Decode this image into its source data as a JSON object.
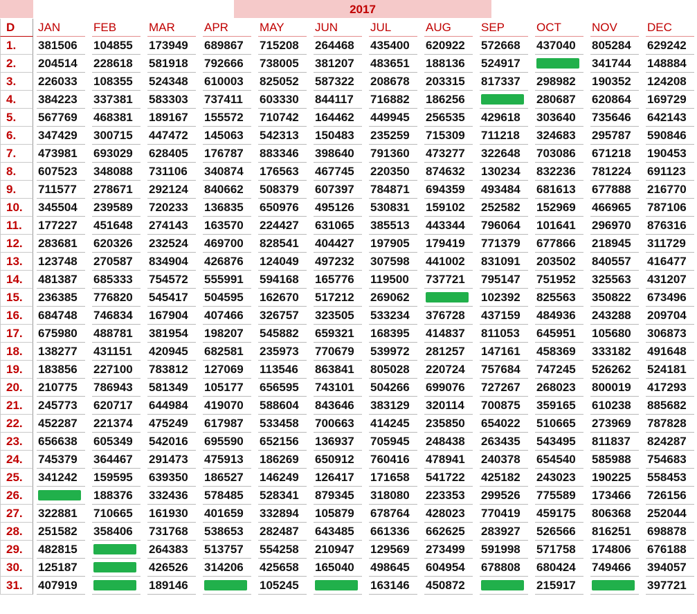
{
  "sheet": {
    "year": "2017",
    "day_header": "D",
    "months": [
      "JAN",
      "FEB",
      "MAR",
      "APR",
      "MAY",
      "JUN",
      "JUL",
      "AUG",
      "SEP",
      "OCT",
      "NOV",
      "DEC"
    ],
    "rows": [
      {
        "day": "1.",
        "values": [
          "381506",
          "104855",
          "173949",
          "689867",
          "715208",
          "264468",
          "435400",
          "620922",
          "572668",
          "437040",
          "805284",
          "629242"
        ]
      },
      {
        "day": "2.",
        "values": [
          "204514",
          "228618",
          "581918",
          "792666",
          "738005",
          "381207",
          "483651",
          "188136",
          "524917",
          "",
          "341744",
          "148884"
        ]
      },
      {
        "day": "3.",
        "values": [
          "226033",
          "108355",
          "524348",
          "610003",
          "825052",
          "587322",
          "208678",
          "203315",
          "817337",
          "298982",
          "190352",
          "124208"
        ]
      },
      {
        "day": "4.",
        "values": [
          "384223",
          "337381",
          "583303",
          "737411",
          "603330",
          "844117",
          "716882",
          "186256",
          "",
          "280687",
          "620864",
          "169729"
        ]
      },
      {
        "day": "5.",
        "values": [
          "567769",
          "468381",
          "189167",
          "155572",
          "710742",
          "164462",
          "449945",
          "256535",
          "429618",
          "303640",
          "735646",
          "642143"
        ]
      },
      {
        "day": "6.",
        "values": [
          "347429",
          "300715",
          "447472",
          "145063",
          "542313",
          "150483",
          "235259",
          "715309",
          "711218",
          "324683",
          "295787",
          "590846"
        ]
      },
      {
        "day": "7.",
        "values": [
          "473981",
          "693029",
          "628405",
          "176787",
          "883346",
          "398640",
          "791360",
          "473277",
          "322648",
          "703086",
          "671218",
          "190453"
        ]
      },
      {
        "day": "8.",
        "values": [
          "607523",
          "348088",
          "731106",
          "340874",
          "176563",
          "467745",
          "220350",
          "874632",
          "130234",
          "832236",
          "781224",
          "691123"
        ]
      },
      {
        "day": "9.",
        "values": [
          "711577",
          "278671",
          "292124",
          "840662",
          "508379",
          "607397",
          "784871",
          "694359",
          "493484",
          "681613",
          "677888",
          "216770"
        ]
      },
      {
        "day": "10.",
        "values": [
          "345504",
          "239589",
          "720233",
          "136835",
          "650976",
          "495126",
          "530831",
          "159102",
          "252582",
          "152969",
          "466965",
          "787106"
        ]
      },
      {
        "day": "11.",
        "values": [
          "177227",
          "451648",
          "274143",
          "163570",
          "224427",
          "631065",
          "385513",
          "443344",
          "796064",
          "101641",
          "296970",
          "876316"
        ]
      },
      {
        "day": "12.",
        "values": [
          "283681",
          "620326",
          "232524",
          "469700",
          "828541",
          "404427",
          "197905",
          "179419",
          "771379",
          "677866",
          "218945",
          "311729"
        ]
      },
      {
        "day": "13.",
        "values": [
          "123748",
          "270587",
          "834904",
          "426876",
          "124049",
          "497232",
          "307598",
          "441002",
          "831091",
          "203502",
          "840557",
          "416477"
        ]
      },
      {
        "day": "14.",
        "values": [
          "481387",
          "685333",
          "754572",
          "555991",
          "594168",
          "165776",
          "119500",
          "737721",
          "795147",
          "751952",
          "325563",
          "431207"
        ]
      },
      {
        "day": "15.",
        "values": [
          "236385",
          "776820",
          "545417",
          "504595",
          "162670",
          "517212",
          "269062",
          "",
          "102392",
          "825563",
          "350822",
          "673496"
        ]
      },
      {
        "day": "16.",
        "values": [
          "684748",
          "746834",
          "167904",
          "407466",
          "326757",
          "323505",
          "533234",
          "376728",
          "437159",
          "484936",
          "243288",
          "209704"
        ]
      },
      {
        "day": "17.",
        "values": [
          "675980",
          "488781",
          "381954",
          "198207",
          "545882",
          "659321",
          "168395",
          "414837",
          "811053",
          "645951",
          "105680",
          "306873"
        ]
      },
      {
        "day": "18.",
        "values": [
          "138277",
          "431151",
          "420945",
          "682581",
          "235973",
          "770679",
          "539972",
          "281257",
          "147161",
          "458369",
          "333182",
          "491648"
        ]
      },
      {
        "day": "19.",
        "values": [
          "183856",
          "227100",
          "783812",
          "127069",
          "113546",
          "863841",
          "805028",
          "220724",
          "757684",
          "747245",
          "526262",
          "524181"
        ]
      },
      {
        "day": "20.",
        "values": [
          "210775",
          "786943",
          "581349",
          "105177",
          "656595",
          "743101",
          "504266",
          "699076",
          "727267",
          "268023",
          "800019",
          "417293"
        ]
      },
      {
        "day": "21.",
        "values": [
          "245773",
          "620717",
          "644984",
          "419070",
          "588604",
          "843646",
          "383129",
          "320114",
          "700875",
          "359165",
          "610238",
          "885682"
        ]
      },
      {
        "day": "22.",
        "values": [
          "452287",
          "221374",
          "475249",
          "617987",
          "533458",
          "700663",
          "414245",
          "235850",
          "654022",
          "510665",
          "273969",
          "787828"
        ]
      },
      {
        "day": "23.",
        "values": [
          "656638",
          "605349",
          "542016",
          "695590",
          "652156",
          "136937",
          "705945",
          "248438",
          "263435",
          "543495",
          "811837",
          "824287"
        ]
      },
      {
        "day": "24.",
        "values": [
          "745379",
          "364467",
          "291473",
          "475913",
          "186269",
          "650912",
          "760416",
          "478941",
          "240378",
          "654540",
          "585988",
          "754683"
        ]
      },
      {
        "day": "25.",
        "values": [
          "341242",
          "159595",
          "639350",
          "186527",
          "146249",
          "126417",
          "171658",
          "541722",
          "425182",
          "243023",
          "190225",
          "558453"
        ]
      },
      {
        "day": "26.",
        "values": [
          "",
          "188376",
          "332436",
          "578485",
          "528341",
          "879345",
          "318080",
          "223353",
          "299526",
          "775589",
          "173466",
          "726156"
        ]
      },
      {
        "day": "27.",
        "values": [
          "322881",
          "710665",
          "161930",
          "401659",
          "332894",
          "105879",
          "678764",
          "428023",
          "770419",
          "459175",
          "806368",
          "252044"
        ]
      },
      {
        "day": "28.",
        "values": [
          "251582",
          "358406",
          "731768",
          "538653",
          "282487",
          "643485",
          "661336",
          "662625",
          "283927",
          "526566",
          "816251",
          "698878"
        ]
      },
      {
        "day": "29.",
        "values": [
          "482815",
          "",
          "264383",
          "513757",
          "554258",
          "210947",
          "129569",
          "273499",
          "591998",
          "571758",
          "174806",
          "676188"
        ]
      },
      {
        "day": "30.",
        "values": [
          "125187",
          "",
          "426526",
          "314206",
          "425658",
          "165040",
          "498645",
          "604954",
          "678808",
          "680424",
          "749466",
          "394057"
        ]
      },
      {
        "day": "31.",
        "values": [
          "407919",
          "",
          "189146",
          "",
          "105245",
          "",
          "163146",
          "450872",
          "",
          "215917",
          "",
          "397721"
        ]
      }
    ],
    "redacted_color": "#21b04b"
  }
}
